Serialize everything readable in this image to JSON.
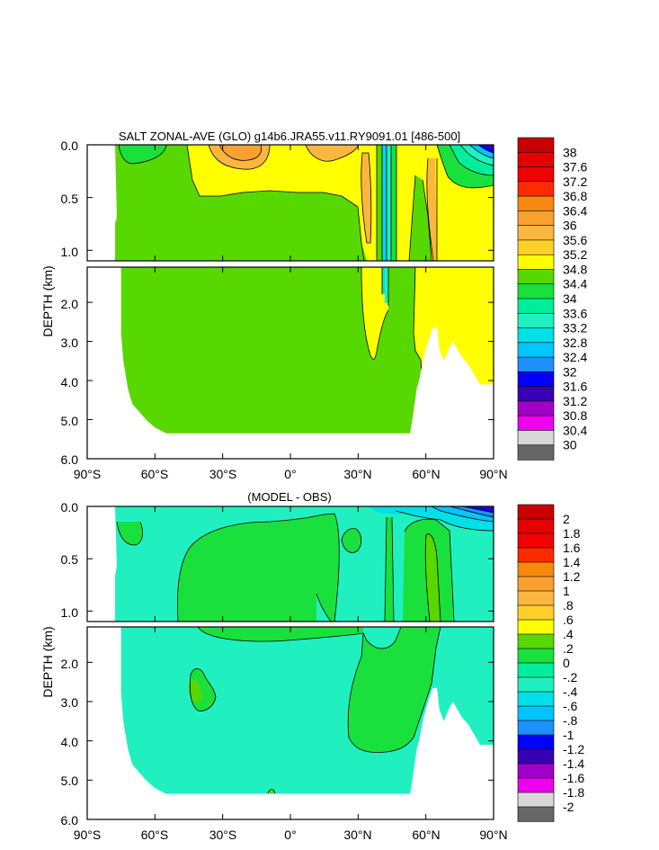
{
  "chart_data": [
    {
      "type": "heatmap",
      "title": "SALT ZONAL-AVE (GLO) g14b6.JRA55.v11.RY9091.01 [486-500]",
      "xlabel": "",
      "ylabel": "DEPTH (km)",
      "x_ticks": [
        "90°S",
        "60°S",
        "30°S",
        "0°",
        "30°N",
        "60°N",
        "90°N"
      ],
      "y_ticks_upper": [
        "0.0",
        "0.5",
        "1.0"
      ],
      "y_ticks_lower": [
        "2.0",
        "3.0",
        "4.0",
        "5.0",
        "6.0"
      ],
      "xlim": [
        -90,
        90
      ],
      "ylim_upper_km": [
        0,
        1.1
      ],
      "ylim_lower_km": [
        1.1,
        6.0
      ],
      "colorbar_labels": [
        "38",
        "37.6",
        "37.2",
        "36.8",
        "36.4",
        "36",
        "35.6",
        "35.2",
        "34.8",
        "34.4",
        "34",
        "33.6",
        "33.2",
        "32.8",
        "32.4",
        "32",
        "31.6",
        "31.2",
        "30.8",
        "30.4",
        "30"
      ],
      "colorbar_colors": [
        "#c80000",
        "#e40000",
        "#f20000",
        "#ff2a00",
        "#f58a0e",
        "#f8a030",
        "#fbb640",
        "#fdd02a",
        "#ffff00",
        "#57d800",
        "#19e03c",
        "#00ee9b",
        "#20f0c0",
        "#00e0e6",
        "#00c5ff",
        "#1e90ff",
        "#0000ff",
        "#3800b3",
        "#a000c8",
        "#ee00ee",
        "#d8d8d8",
        "#666666"
      ],
      "mask_depth_km": [
        {
          "lat": -90,
          "d": 0
        },
        {
          "lat": -76,
          "d": 0
        },
        {
          "lat": -76,
          "d": 1.1
        },
        {
          "lat": -75,
          "d": 1.1
        },
        {
          "lat": -75,
          "d": 2.8
        },
        {
          "lat": -74,
          "d": 3.5
        },
        {
          "lat": -72,
          "d": 4.2
        },
        {
          "lat": -70,
          "d": 4.6
        },
        {
          "lat": -67,
          "d": 4.8
        },
        {
          "lat": -64,
          "d": 5.0
        },
        {
          "lat": -60,
          "d": 5.2
        },
        {
          "lat": -55,
          "d": 5.35
        },
        {
          "lat": -50,
          "d": 5.35
        },
        {
          "lat": -48,
          "d": 5.35
        },
        {
          "lat": -40,
          "d": 5.35
        },
        {
          "lat": 0,
          "d": 5.35
        },
        {
          "lat": 40,
          "d": 5.35
        },
        {
          "lat": 53,
          "d": 5.35
        },
        {
          "lat": 54,
          "d": 5.0
        },
        {
          "lat": 55,
          "d": 4.6
        },
        {
          "lat": 56,
          "d": 4.2
        },
        {
          "lat": 57,
          "d": 4.0
        },
        {
          "lat": 59,
          "d": 3.4
        },
        {
          "lat": 61,
          "d": 3.0
        },
        {
          "lat": 63,
          "d": 2.65
        },
        {
          "lat": 65,
          "d": 2.65
        },
        {
          "lat": 66,
          "d": 3.2
        },
        {
          "lat": 68,
          "d": 3.5
        },
        {
          "lat": 70,
          "d": 3.2
        },
        {
          "lat": 72,
          "d": 3.0
        },
        {
          "lat": 74,
          "d": 3.2
        },
        {
          "lat": 76,
          "d": 3.4
        },
        {
          "lat": 79,
          "d": 3.6
        },
        {
          "lat": 82,
          "d": 3.9
        },
        {
          "lat": 84,
          "d": 4.1
        },
        {
          "lat": 90,
          "d": 4.1
        }
      ]
    },
    {
      "type": "heatmap",
      "title": "(MODEL - OBS)",
      "xlabel": "",
      "ylabel": "DEPTH (km)",
      "x_ticks": [
        "90°S",
        "60°S",
        "30°S",
        "0°",
        "30°N",
        "60°N",
        "90°N"
      ],
      "y_ticks_upper": [
        "0.0",
        "0.5",
        "1.0"
      ],
      "y_ticks_lower": [
        "2.0",
        "3.0",
        "4.0",
        "5.0",
        "6.0"
      ],
      "xlim": [
        -90,
        90
      ],
      "ylim_upper_km": [
        0,
        1.1
      ],
      "ylim_lower_km": [
        1.1,
        6.0
      ],
      "colorbar_labels": [
        "2",
        "1.8",
        "1.6",
        "1.4",
        "1.2",
        "1",
        ".8",
        ".6",
        ".4",
        ".2",
        "0",
        "-.2",
        "-.4",
        "-.6",
        "-.8",
        "-1",
        "-1.2",
        "-1.4",
        "-1.6",
        "-1.8",
        "-2"
      ],
      "colorbar_colors": [
        "#c80000",
        "#e40000",
        "#f20000",
        "#ff2a00",
        "#f58a0e",
        "#f8a030",
        "#fbb640",
        "#fdd02a",
        "#ffff00",
        "#57d800",
        "#19e03c",
        "#00ee9b",
        "#20f0c0",
        "#00e0e6",
        "#00c5ff",
        "#1e90ff",
        "#0000ff",
        "#3800b3",
        "#a000c8",
        "#ee00ee",
        "#d8d8d8",
        "#666666"
      ]
    }
  ]
}
